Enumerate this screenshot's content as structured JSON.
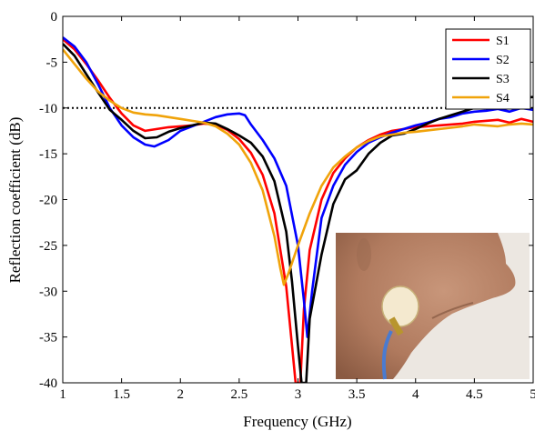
{
  "chart_data": {
    "type": "line",
    "xlabel": "Frequency (GHz)",
    "ylabel": "Reflection coefficient (dB)",
    "xlim": [
      1,
      5
    ],
    "ylim": [
      -40,
      0
    ],
    "xticks": [
      "1",
      "1.5",
      "2",
      "2.5",
      "3",
      "3.5",
      "4",
      "4.5",
      "5"
    ],
    "yticks": [
      "0",
      "-5",
      "-10",
      "-15",
      "-20",
      "-25",
      "-30",
      "-35",
      "-40"
    ],
    "grid": false,
    "legend_position": "top-right",
    "reference_line": {
      "y": -10,
      "style": "dotted",
      "color": "#000000"
    },
    "inset": {
      "description": "photo of antenna on neck",
      "position": "bottom-right"
    },
    "series": [
      {
        "name": "S1",
        "color": "#ff0000",
        "points": [
          [
            1,
            -2.5
          ],
          [
            1.1,
            -3.6
          ],
          [
            1.2,
            -5.2
          ],
          [
            1.3,
            -7.0
          ],
          [
            1.4,
            -8.9
          ],
          [
            1.5,
            -10.6
          ],
          [
            1.6,
            -11.9
          ],
          [
            1.7,
            -12.5
          ],
          [
            1.8,
            -12.3
          ],
          [
            1.9,
            -12.1
          ],
          [
            2.0,
            -12.0
          ],
          [
            2.1,
            -11.9
          ],
          [
            2.2,
            -11.7
          ],
          [
            2.3,
            -11.8
          ],
          [
            2.4,
            -12.4
          ],
          [
            2.5,
            -13.4
          ],
          [
            2.6,
            -14.9
          ],
          [
            2.7,
            -17.3
          ],
          [
            2.8,
            -21.5
          ],
          [
            2.9,
            -29.5
          ],
          [
            2.95,
            -36
          ],
          [
            2.98,
            -40
          ],
          [
            3.02,
            -40
          ],
          [
            3.05,
            -32
          ],
          [
            3.1,
            -25.5
          ],
          [
            3.2,
            -20.0
          ],
          [
            3.3,
            -17.1
          ],
          [
            3.4,
            -15.5
          ],
          [
            3.5,
            -14.3
          ],
          [
            3.6,
            -13.5
          ],
          [
            3.7,
            -12.9
          ],
          [
            3.8,
            -12.5
          ],
          [
            3.9,
            -12.3
          ],
          [
            4.0,
            -12.1
          ],
          [
            4.2,
            -11.9
          ],
          [
            4.4,
            -11.7
          ],
          [
            4.5,
            -11.5
          ],
          [
            4.7,
            -11.3
          ],
          [
            4.8,
            -11.6
          ],
          [
            4.9,
            -11.2
          ],
          [
            5.0,
            -11.5
          ]
        ]
      },
      {
        "name": "S2",
        "color": "#0000ff",
        "points": [
          [
            1,
            -2.3
          ],
          [
            1.1,
            -3.3
          ],
          [
            1.2,
            -5.0
          ],
          [
            1.3,
            -7.4
          ],
          [
            1.4,
            -10.0
          ],
          [
            1.5,
            -11.9
          ],
          [
            1.6,
            -13.2
          ],
          [
            1.7,
            -14.0
          ],
          [
            1.78,
            -14.2
          ],
          [
            1.9,
            -13.5
          ],
          [
            2.0,
            -12.5
          ],
          [
            2.2,
            -11.5
          ],
          [
            2.3,
            -11.0
          ],
          [
            2.4,
            -10.7
          ],
          [
            2.5,
            -10.6
          ],
          [
            2.55,
            -10.8
          ],
          [
            2.6,
            -11.8
          ],
          [
            2.7,
            -13.5
          ],
          [
            2.8,
            -15.5
          ],
          [
            2.9,
            -18.5
          ],
          [
            3.0,
            -25
          ],
          [
            3.05,
            -31
          ],
          [
            3.08,
            -35
          ],
          [
            3.12,
            -30
          ],
          [
            3.2,
            -22
          ],
          [
            3.3,
            -18.5
          ],
          [
            3.4,
            -16.2
          ],
          [
            3.5,
            -14.8
          ],
          [
            3.6,
            -13.8
          ],
          [
            3.7,
            -13.2
          ],
          [
            3.8,
            -12.7
          ],
          [
            3.9,
            -12.3
          ],
          [
            4.0,
            -11.9
          ],
          [
            4.1,
            -11.6
          ],
          [
            4.2,
            -11.2
          ],
          [
            4.3,
            -11.0
          ],
          [
            4.4,
            -10.6
          ],
          [
            4.5,
            -10.4
          ],
          [
            4.6,
            -10.3
          ],
          [
            4.7,
            -10.1
          ],
          [
            4.8,
            -10.4
          ],
          [
            4.9,
            -10.0
          ],
          [
            5.0,
            -10.2
          ]
        ]
      },
      {
        "name": "S3",
        "color": "#000000",
        "points": [
          [
            1,
            -3.0
          ],
          [
            1.1,
            -4.3
          ],
          [
            1.2,
            -6.3
          ],
          [
            1.3,
            -8.3
          ],
          [
            1.4,
            -10.2
          ],
          [
            1.5,
            -11.3
          ],
          [
            1.6,
            -12.5
          ],
          [
            1.7,
            -13.3
          ],
          [
            1.8,
            -13.2
          ],
          [
            1.9,
            -12.6
          ],
          [
            2.0,
            -12.2
          ],
          [
            2.1,
            -11.9
          ],
          [
            2.2,
            -11.6
          ],
          [
            2.3,
            -11.7
          ],
          [
            2.4,
            -12.3
          ],
          [
            2.5,
            -13.0
          ],
          [
            2.6,
            -13.8
          ],
          [
            2.7,
            -15.3
          ],
          [
            2.8,
            -18.0
          ],
          [
            2.9,
            -23.5
          ],
          [
            2.95,
            -29
          ],
          [
            3.0,
            -36
          ],
          [
            3.03,
            -40
          ],
          [
            3.07,
            -40
          ],
          [
            3.1,
            -33
          ],
          [
            3.2,
            -26
          ],
          [
            3.3,
            -20.5
          ],
          [
            3.4,
            -17.8
          ],
          [
            3.5,
            -16.8
          ],
          [
            3.6,
            -15.0
          ],
          [
            3.7,
            -13.8
          ],
          [
            3.8,
            -13.0
          ],
          [
            3.9,
            -12.8
          ],
          [
            4.0,
            -12.3
          ],
          [
            4.1,
            -11.7
          ],
          [
            4.2,
            -11.2
          ],
          [
            4.3,
            -10.8
          ],
          [
            4.4,
            -10.4
          ],
          [
            4.5,
            -10.0
          ],
          [
            4.6,
            -9.6
          ],
          [
            4.7,
            -9.4
          ],
          [
            4.8,
            -9.2
          ],
          [
            4.9,
            -8.9
          ],
          [
            5.0,
            -8.8
          ]
        ]
      },
      {
        "name": "S4",
        "color": "#f0a30a",
        "points": [
          [
            1,
            -3.6
          ],
          [
            1.1,
            -5.2
          ],
          [
            1.2,
            -6.8
          ],
          [
            1.3,
            -8.2
          ],
          [
            1.4,
            -9.2
          ],
          [
            1.5,
            -10.0
          ],
          [
            1.6,
            -10.5
          ],
          [
            1.7,
            -10.7
          ],
          [
            1.8,
            -10.8
          ],
          [
            1.9,
            -11.0
          ],
          [
            2.0,
            -11.2
          ],
          [
            2.1,
            -11.4
          ],
          [
            2.2,
            -11.6
          ],
          [
            2.3,
            -12.0
          ],
          [
            2.4,
            -12.8
          ],
          [
            2.5,
            -14.0
          ],
          [
            2.6,
            -16.0
          ],
          [
            2.7,
            -19.0
          ],
          [
            2.8,
            -24.0
          ],
          [
            2.85,
            -27.5
          ],
          [
            2.88,
            -29.3
          ],
          [
            2.92,
            -28.0
          ],
          [
            3.0,
            -25.0
          ],
          [
            3.1,
            -21.5
          ],
          [
            3.2,
            -18.5
          ],
          [
            3.3,
            -16.5
          ],
          [
            3.4,
            -15.3
          ],
          [
            3.5,
            -14.3
          ],
          [
            3.6,
            -13.6
          ],
          [
            3.7,
            -13.1
          ],
          [
            3.8,
            -12.9
          ],
          [
            3.9,
            -12.7
          ],
          [
            4.0,
            -12.6
          ],
          [
            4.2,
            -12.3
          ],
          [
            4.4,
            -12.0
          ],
          [
            4.5,
            -11.8
          ],
          [
            4.6,
            -11.9
          ],
          [
            4.7,
            -12.0
          ],
          [
            4.8,
            -11.8
          ],
          [
            4.9,
            -11.7
          ],
          [
            5.0,
            -11.8
          ]
        ]
      }
    ]
  }
}
